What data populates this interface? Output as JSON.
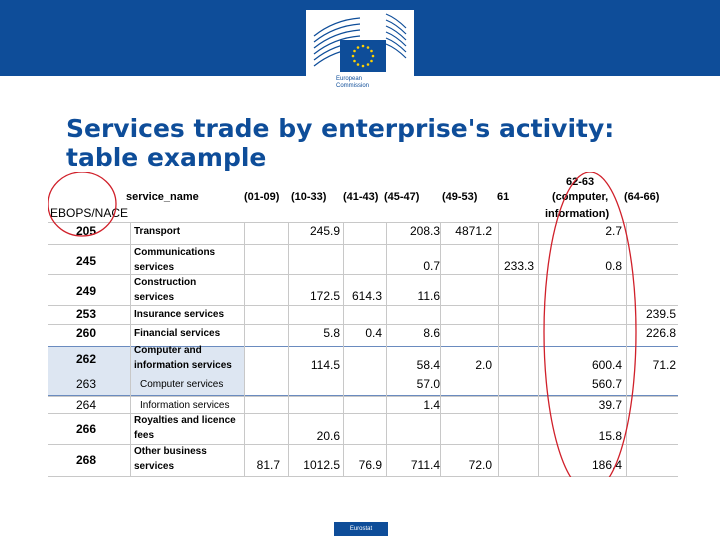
{
  "header": {
    "logo_line1": "European",
    "logo_line2": "Commission",
    "brand_color": "#0e4d99"
  },
  "title": "Services trade by enterprise's activity: table example",
  "table": {
    "corner_label": "EBOPS/NACE",
    "name_header": "service_name",
    "columns": [
      "(01-09)",
      "(10-33)",
      "(41-43)",
      "(45-47)",
      "(49-53)",
      "61",
      "62-63 (computer, information)",
      "(64-66)"
    ],
    "col62_line1": "62-63",
    "col62_line2": "(computer,",
    "col62_line3": "information)",
    "rows": [
      {
        "code": "205",
        "name1": "Transport",
        "name2": "",
        "v": [
          "",
          "245.9",
          "",
          "208.3",
          "4871.2",
          "",
          "2.7",
          ""
        ]
      },
      {
        "code": "245",
        "name1": "Communications",
        "name2": "services",
        "v": [
          "",
          "",
          "",
          "0.7",
          "",
          "233.3",
          "0.8",
          ""
        ]
      },
      {
        "code": "249",
        "name1": "Construction",
        "name2": "services",
        "v": [
          "",
          "172.5",
          "614.3",
          "11.6",
          "",
          "",
          "",
          ""
        ]
      },
      {
        "code": "253",
        "name1": "Insurance services",
        "name2": "",
        "v": [
          "",
          "",
          "",
          "",
          "",
          "",
          "",
          "239.5"
        ]
      },
      {
        "code": "260",
        "name1": "Financial services",
        "name2": "",
        "v": [
          "",
          "5.8",
          "0.4",
          "8.6",
          "",
          "",
          "",
          "226.8"
        ]
      },
      {
        "code": "262",
        "name1": "Computer and",
        "name2": "information services",
        "v": [
          "",
          "114.5",
          "",
          "58.4",
          "2.0",
          "",
          "600.4",
          "71.2"
        ]
      },
      {
        "code": "263",
        "name1": "Computer services",
        "name2": "",
        "v": [
          "",
          "",
          "",
          "57.0",
          "",
          "",
          "560.7",
          ""
        ]
      },
      {
        "code": "264",
        "name1": "Information services",
        "name2": "",
        "v": [
          "",
          "",
          "",
          "1.4",
          "",
          "",
          "39.7",
          ""
        ]
      },
      {
        "code": "266",
        "name1": "Royalties and licence",
        "name2": "fees",
        "v": [
          "",
          "20.6",
          "",
          "",
          "",
          "",
          "15.8",
          ""
        ]
      },
      {
        "code": "268",
        "name1": "Other business",
        "name2": "services",
        "v": [
          "81.7",
          "1012.5",
          "76.9",
          "711.4",
          "72.0",
          "",
          "186.4",
          ""
        ]
      }
    ]
  },
  "annotations": {
    "circle_color": "#d0202a"
  },
  "footer": {
    "label": "Eurostat"
  }
}
